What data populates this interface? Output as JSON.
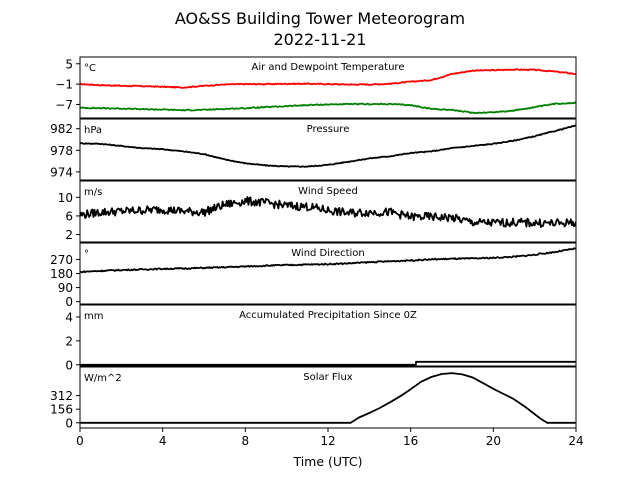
{
  "title": "AO&SS Building Tower Meteorogram",
  "subtitle": "2022-11-21",
  "chart_data": {
    "type": "line",
    "title": "AO&SS Building Tower Meteorogram",
    "subtitle": "2022-11-21",
    "xlabel": "Time (UTC)",
    "xlim": [
      0,
      24
    ],
    "xticks": [
      "0",
      "4",
      "8",
      "12",
      "16",
      "20",
      "24"
    ],
    "x": [
      0,
      1,
      2,
      3,
      4,
      5,
      6,
      7,
      8,
      9,
      10,
      11,
      12,
      13,
      14,
      15,
      16,
      17,
      18,
      19,
      20,
      21,
      22,
      23,
      24
    ],
    "panels": [
      {
        "name": "temperature",
        "title": "Air and Dewpoint Temperature",
        "unit": "°C",
        "ylim": [
          -11,
          7
        ],
        "yticks": [
          "5",
          "−1",
          "−7"
        ],
        "ytick_values": [
          5,
          -1,
          -7
        ],
        "noise": 0.15,
        "series": [
          {
            "name": "",
            "color": "#ff0000",
            "values": [
              -1.0,
              -1.3,
              -1.5,
              -1.6,
              -1.8,
              -2.0,
              -1.5,
              -1.1,
              -1.0,
              -1.0,
              -0.9,
              -0.9,
              -1.0,
              -1.1,
              -1.1,
              -0.9,
              -0.3,
              0.2,
              2.0,
              3.0,
              3.1,
              3.3,
              3.2,
              2.7,
              2.0
            ]
          },
          {
            "name": "",
            "color": "#008000",
            "values": [
              -8.0,
              -8.1,
              -8.2,
              -8.4,
              -8.5,
              -8.7,
              -8.6,
              -8.3,
              -8.1,
              -7.8,
              -7.5,
              -7.2,
              -7.0,
              -6.9,
              -6.9,
              -6.9,
              -7.2,
              -8.3,
              -8.6,
              -9.5,
              -9.3,
              -8.8,
              -7.8,
              -6.8,
              -6.5
            ]
          }
        ]
      },
      {
        "name": "pressure",
        "title": "Pressure",
        "unit": "hPa",
        "ylim": [
          972.5,
          983.8
        ],
        "yticks": [
          "982",
          "978",
          "974"
        ],
        "ytick_values": [
          982,
          978,
          974
        ],
        "noise": 0.08,
        "series": [
          {
            "name": "",
            "color": "#000000",
            "values": [
              979.3,
              979.2,
              978.8,
              978.4,
              978.2,
              977.8,
              977.3,
              976.3,
              975.6,
              975.2,
              975.0,
              975.0,
              975.3,
              975.9,
              976.5,
              976.9,
              977.5,
              977.8,
              978.4,
              978.8,
              979.2,
              979.8,
              980.6,
              981.6,
              982.6
            ]
          }
        ]
      },
      {
        "name": "wind_speed",
        "title": "Wind Speed",
        "unit": "m/s",
        "ylim": [
          0.4,
          13.5
        ],
        "yticks": [
          "10",
          "6",
          "2"
        ],
        "ytick_values": [
          10,
          6,
          2
        ],
        "noise": 0.9,
        "series": [
          {
            "name": "",
            "color": "#000000",
            "values": [
              6.2,
              6.8,
              7.0,
              7.2,
              7.4,
              7.0,
              6.8,
              8.4,
              9.2,
              8.8,
              8.2,
              8.0,
              7.2,
              6.6,
              6.8,
              6.8,
              5.8,
              5.8,
              5.6,
              4.6,
              4.5,
              4.6,
              4.5,
              4.4,
              4.6
            ]
          }
        ]
      },
      {
        "name": "wind_direction",
        "title": "Wind Direction",
        "unit": "°",
        "ylim": [
          -15,
          375
        ],
        "yticks": [
          "270",
          "180",
          "90",
          "0"
        ],
        "ytick_values": [
          270,
          180,
          90,
          0
        ],
        "noise": 4,
        "series": [
          {
            "name": "",
            "color": "#000000",
            "values": [
              190,
              197,
              202,
              206,
              210,
              212,
              216,
              220,
              225,
              230,
              234,
              237,
              240,
              245,
              252,
              258,
              264,
              270,
              274,
              276,
              280,
              287,
              300,
              318,
              340
            ]
          }
        ]
      },
      {
        "name": "precipitation",
        "title": "Accumulated Precipitation Since 0Z",
        "unit": "mm",
        "ylim": [
          -0.1,
          5.0
        ],
        "yticks": [
          "4",
          "2",
          "0"
        ],
        "ytick_values": [
          4,
          2,
          0
        ],
        "noise": 0,
        "series": [
          {
            "name": "",
            "color": "#000000",
            "x": [
              0,
              16.25,
              16.26,
              24
            ],
            "values": [
              0,
              0,
              0.25,
              0.25
            ]
          }
        ]
      },
      {
        "name": "solar_flux",
        "title": "Solar Flux",
        "unit": "W/m^2",
        "ylim": [
          -60,
          640
        ],
        "yticks": [
          "312",
          "156",
          "0"
        ],
        "ytick_values": [
          312,
          156,
          0
        ],
        "noise": 0,
        "series": [
          {
            "name": "",
            "color": "#000000",
            "x": [
              0,
              13.1,
              13.5,
              14,
              14.5,
              15,
              15.5,
              16,
              16.5,
              17,
              17.5,
              18,
              18.5,
              19,
              19.5,
              20,
              20.5,
              21,
              21.5,
              22,
              22.3,
              22.6,
              24
            ],
            "values": [
              0,
              0,
              60,
              112,
              170,
              235,
              305,
              385,
              470,
              525,
              560,
              570,
              555,
              520,
              455,
              390,
              330,
              270,
              190,
              100,
              45,
              0,
              0
            ]
          }
        ]
      }
    ]
  }
}
